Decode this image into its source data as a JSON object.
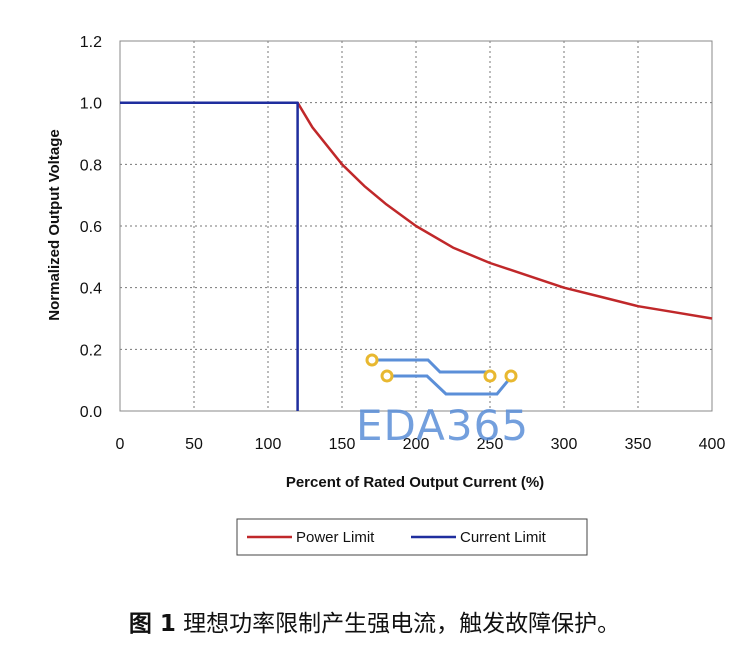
{
  "chart_data": {
    "type": "line",
    "xlabel": "Percent of Rated Output Current (%)",
    "ylabel": "Normalized Output Voltage",
    "xlim": [
      0,
      400
    ],
    "ylim": [
      0,
      1.2
    ],
    "x_ticks": [
      "0",
      "50",
      "100",
      "150",
      "200",
      "250",
      "300",
      "350",
      "400"
    ],
    "y_ticks": [
      "0.0",
      "0.2",
      "0.4",
      "0.6",
      "0.8",
      "1.0",
      "1.2"
    ],
    "grid": true,
    "legend_position": "bottom",
    "series": [
      {
        "name": "Power Limit",
        "color": "#c0282a",
        "points": [
          [
            0,
            1.0
          ],
          [
            120,
            1.0
          ],
          [
            130,
            0.92
          ],
          [
            140,
            0.86
          ],
          [
            150,
            0.8
          ],
          [
            165,
            0.73
          ],
          [
            180,
            0.67
          ],
          [
            200,
            0.6
          ],
          [
            225,
            0.53
          ],
          [
            250,
            0.48
          ],
          [
            275,
            0.44
          ],
          [
            300,
            0.4
          ],
          [
            325,
            0.37
          ],
          [
            350,
            0.34
          ],
          [
            375,
            0.32
          ],
          [
            400,
            0.3
          ]
        ]
      },
      {
        "name": "Current Limit",
        "color": "#1f2e9e",
        "points": [
          [
            0,
            1.0
          ],
          [
            120,
            1.0
          ],
          [
            120,
            0.0
          ]
        ]
      }
    ]
  },
  "watermark": {
    "text": "EDA365",
    "color": "#5b8fd8",
    "trace_color": "#5b8fd8",
    "pad_color": "#e8b830"
  },
  "caption": {
    "figure_num": "图 1",
    "text": "理想功率限制产生强电流，触发故障保护。"
  }
}
